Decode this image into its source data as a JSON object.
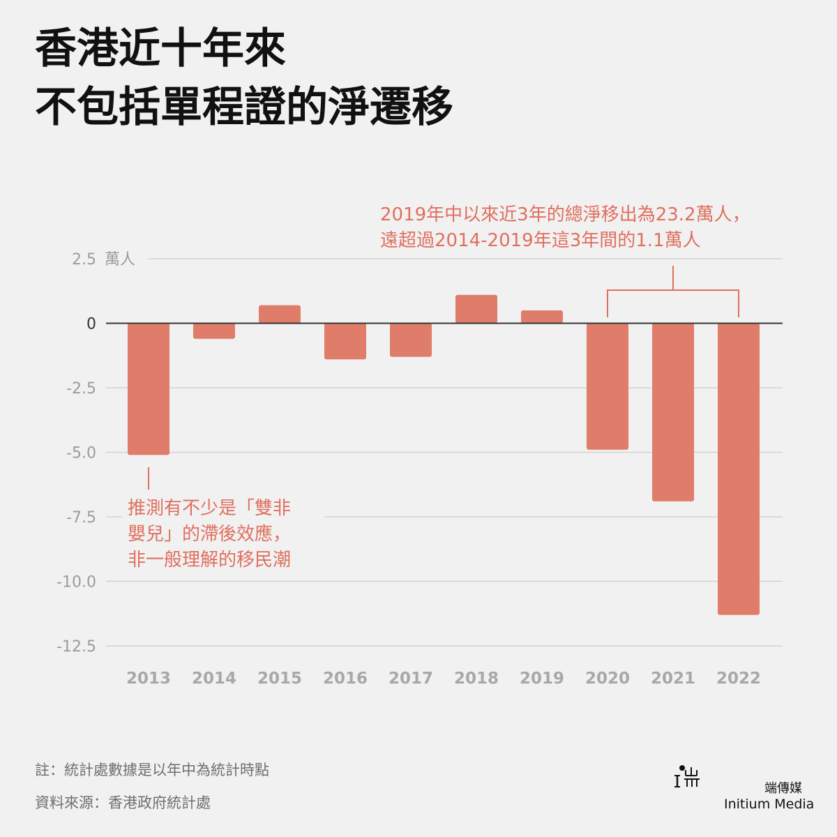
{
  "title": {
    "line1": "香港近十年來",
    "line2": "不包括單程證的淨遷移"
  },
  "chart_data": {
    "type": "bar",
    "unit": "萬人",
    "categories": [
      "2013",
      "2014",
      "2015",
      "2016",
      "2017",
      "2018",
      "2019",
      "2020",
      "2021",
      "2022"
    ],
    "values": [
      -5.1,
      -0.6,
      0.7,
      -1.4,
      -1.3,
      1.1,
      0.5,
      -4.9,
      -6.9,
      -11.3
    ],
    "y_ticks": [
      2.5,
      0,
      -2.5,
      -5.0,
      -7.5,
      -10.0,
      -12.5
    ],
    "y_tick_labels": [
      "2.5",
      "0",
      "-2.5",
      "-5.0",
      "-7.5",
      "-10.0",
      "-12.5"
    ],
    "ylim": [
      -12.5,
      2.5
    ],
    "grid": true,
    "bar_color": "#e07c6a",
    "annotations": {
      "right": {
        "line1": "2019年中以來近3年的總淨移出為23.2萬人，",
        "line2": "遠超過2014-2019年這3年間的1.1萬人"
      },
      "left": {
        "line1": "推測有不少是「雙非",
        "line2": "嬰兒」的滯後效應，",
        "line3": "非一般理解的移民潮"
      },
      "color": "#e06f5e"
    }
  },
  "footer": {
    "note": "註：統計處數據是以年中為統計時點",
    "source": "資料來源：香港政府統計處"
  },
  "brand": {
    "cn": "端傳媒",
    "en": "Initium Media"
  }
}
